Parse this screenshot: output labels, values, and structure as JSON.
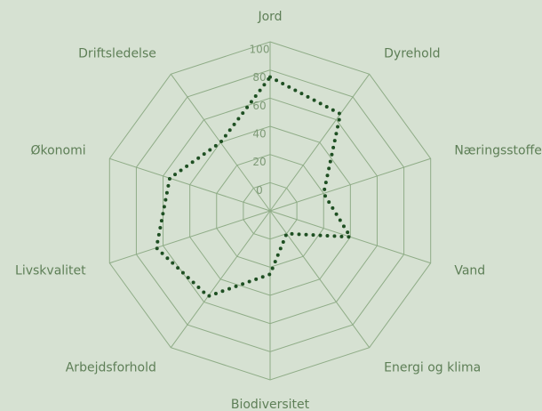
{
  "chart_data": {
    "type": "radar",
    "categories": [
      "Jord",
      "Dyrehold",
      "Næringsstoffer",
      "Vand",
      "Energi og klima",
      "Biodiversitet",
      "Arbejdsforhold",
      "Livskvalitet",
      "Økonomi",
      "Driftsledelse"
    ],
    "values": [
      75,
      65,
      20,
      40,
      0,
      25,
      55,
      65,
      55,
      40
    ],
    "color": "#1e4f22",
    "ylim": [
      0,
      100
    ],
    "yticks": [
      0,
      20,
      40,
      60,
      80,
      100
    ],
    "grid": true
  }
}
